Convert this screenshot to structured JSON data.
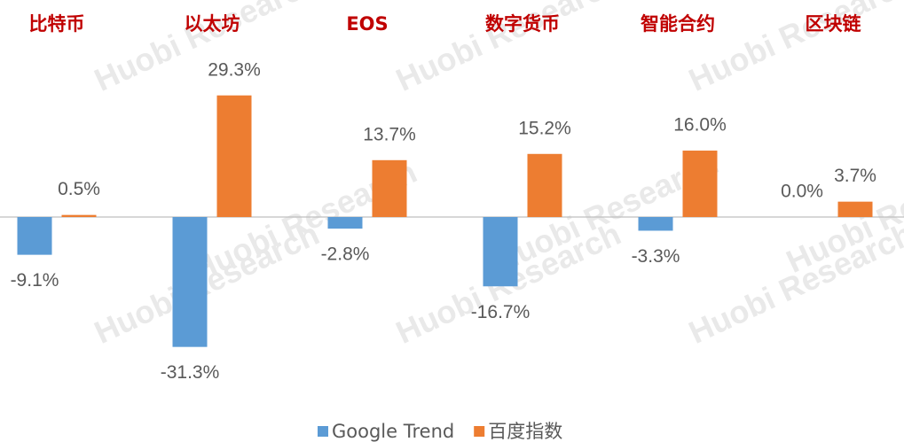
{
  "chart_data": {
    "type": "bar",
    "categories": [
      "比特币",
      "以太坊",
      "EOS",
      "数字货币",
      "智能合约",
      "区块链"
    ],
    "series": [
      {
        "name": "Google Trend",
        "color": "#5b9bd5",
        "values": [
          -9.1,
          -31.3,
          -2.8,
          -16.7,
          -3.3,
          0.0
        ],
        "value_labels": [
          "-9.1%",
          "-31.3%",
          "-2.8%",
          "-16.7%",
          "-3.3%",
          "0.0%"
        ]
      },
      {
        "name": "百度指数",
        "color": "#ed7d31",
        "values": [
          0.5,
          29.3,
          13.7,
          15.2,
          16.0,
          3.7
        ],
        "value_labels": [
          "0.5%",
          "29.3%",
          "13.7%",
          "15.2%",
          "16.0%",
          "3.7%"
        ]
      }
    ],
    "ylim": [
      -35,
      35
    ],
    "watermark": "Huobi Research"
  }
}
